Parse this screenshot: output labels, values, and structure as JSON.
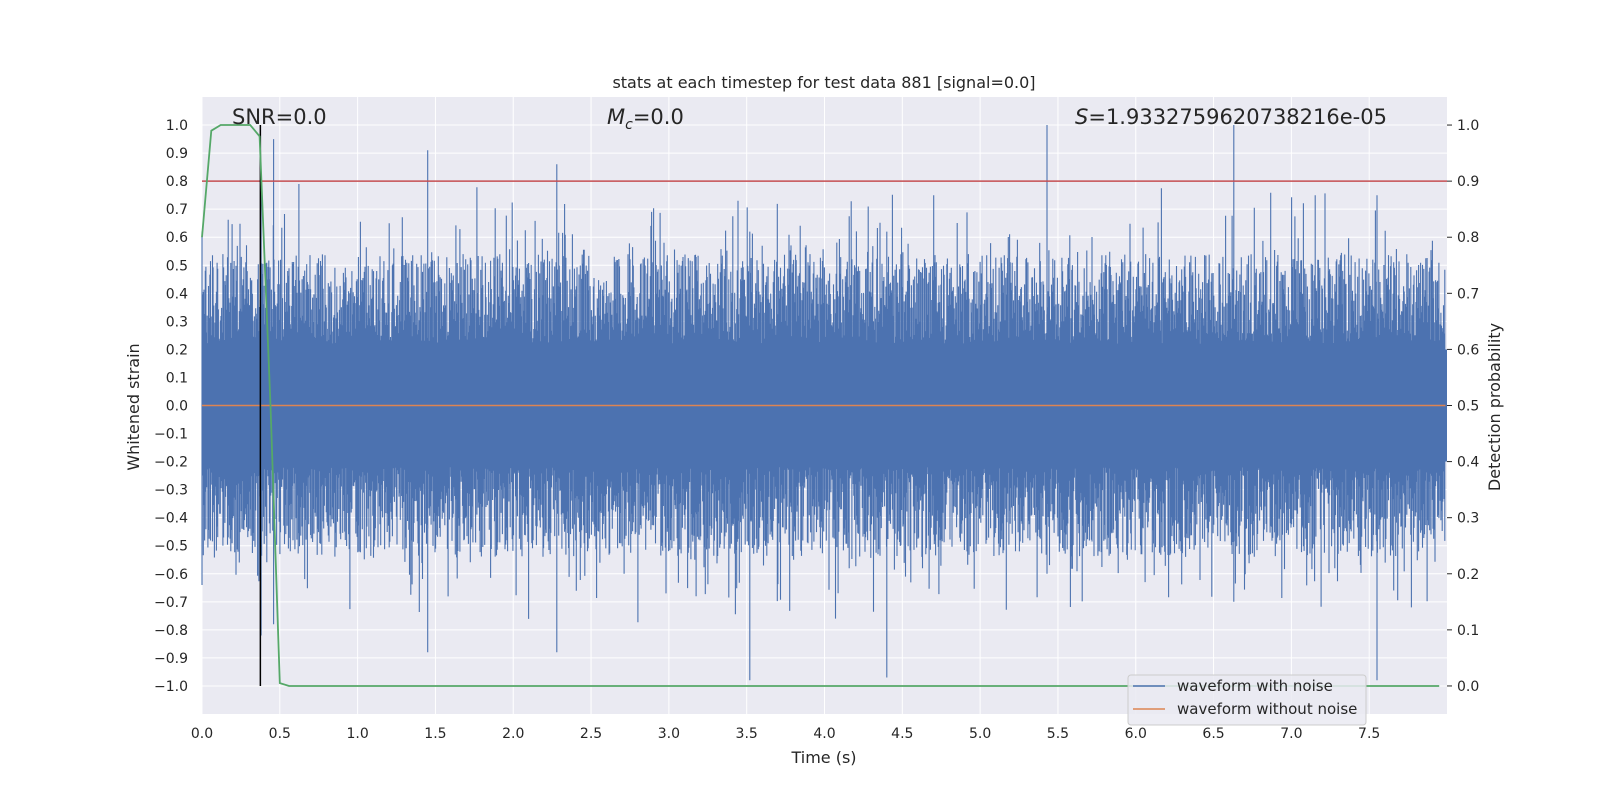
{
  "chart_data": {
    "type": "line",
    "title": "stats at each timestep for test data 881 [signal=0.0]",
    "xlabel": "Time (s)",
    "ylabel": "Whitened strain",
    "y2label": "Detection probability",
    "xlim": [
      0.0,
      8.0
    ],
    "ylim": [
      -1.1,
      1.1
    ],
    "y2lim": [
      -0.05,
      1.05
    ],
    "xticks": [
      "0.0",
      "0.5",
      "1.0",
      "1.5",
      "2.0",
      "2.5",
      "3.0",
      "3.5",
      "4.0",
      "4.5",
      "5.0",
      "5.5",
      "6.0",
      "6.5",
      "7.0",
      "7.5"
    ],
    "yticks": [
      "1.0",
      "0.9",
      "0.8",
      "0.7",
      "0.6",
      "0.5",
      "0.4",
      "0.3",
      "0.2",
      "0.1",
      "0.0",
      "−0.1",
      "−0.2",
      "−0.3",
      "−0.4",
      "−0.5",
      "−0.6",
      "−0.7",
      "−0.8",
      "−0.9",
      "−1.0"
    ],
    "y2ticks": [
      "1.0",
      "0.9",
      "0.8",
      "0.7",
      "0.6",
      "0.5",
      "0.4",
      "0.3",
      "0.2",
      "0.1",
      "0.0"
    ],
    "annotations": {
      "snr": "SNR=0.0",
      "mc_symbol": "M",
      "mc_sub": "c",
      "mc_value": "=0.0",
      "s_symbol": "S",
      "s_value": "=1.9332759620738216e-05"
    },
    "threshold": {
      "y2": 0.9,
      "color": "#c44e52"
    },
    "marker_time": 0.375,
    "series": [
      {
        "name": "waveform with noise",
        "color": "#4c72b0",
        "axis": "left",
        "description": "noise-like whitened strain, amplitude mostly within ±0.5, spikes to about ±1.0",
        "envelope_points": [
          {
            "t": 0.0,
            "max": 0.62,
            "min": -0.64
          },
          {
            "t": 0.38,
            "max": 0.82,
            "min": -0.82
          },
          {
            "t": 0.46,
            "max": 0.95,
            "min": -0.78
          },
          {
            "t": 1.45,
            "max": 0.91,
            "min": -0.88
          },
          {
            "t": 2.28,
            "max": 0.86,
            "min": -0.88
          },
          {
            "t": 3.52,
            "max": 0.62,
            "min": -0.98
          },
          {
            "t": 4.4,
            "max": 0.62,
            "min": -0.97
          },
          {
            "t": 5.43,
            "max": 1.0,
            "min": -0.6
          },
          {
            "t": 6.63,
            "max": 1.0,
            "min": -0.7
          },
          {
            "t": 7.55,
            "max": 0.75,
            "min": -0.98
          }
        ]
      },
      {
        "name": "waveform without noise",
        "color": "#dd8452",
        "axis": "left",
        "values": [
          {
            "t": 0.0,
            "y": 0.0
          },
          {
            "t": 8.0,
            "y": 0.0
          }
        ]
      },
      {
        "name": "detection probability",
        "color": "#55a868",
        "axis": "right",
        "points": [
          [
            0.0,
            0.8
          ],
          [
            0.06,
            0.99
          ],
          [
            0.12,
            1.0
          ],
          [
            0.25,
            1.0
          ],
          [
            0.31,
            1.0
          ],
          [
            0.37,
            0.98
          ],
          [
            0.44,
            0.5
          ],
          [
            0.5,
            0.005
          ],
          [
            0.56,
            0.0
          ],
          [
            7.95,
            0.0
          ]
        ]
      }
    ],
    "legend": {
      "position": "lower-right",
      "entries": [
        {
          "label": "waveform with noise",
          "color": "#4c72b0"
        },
        {
          "label": "waveform without noise",
          "color": "#dd8452"
        }
      ]
    }
  }
}
